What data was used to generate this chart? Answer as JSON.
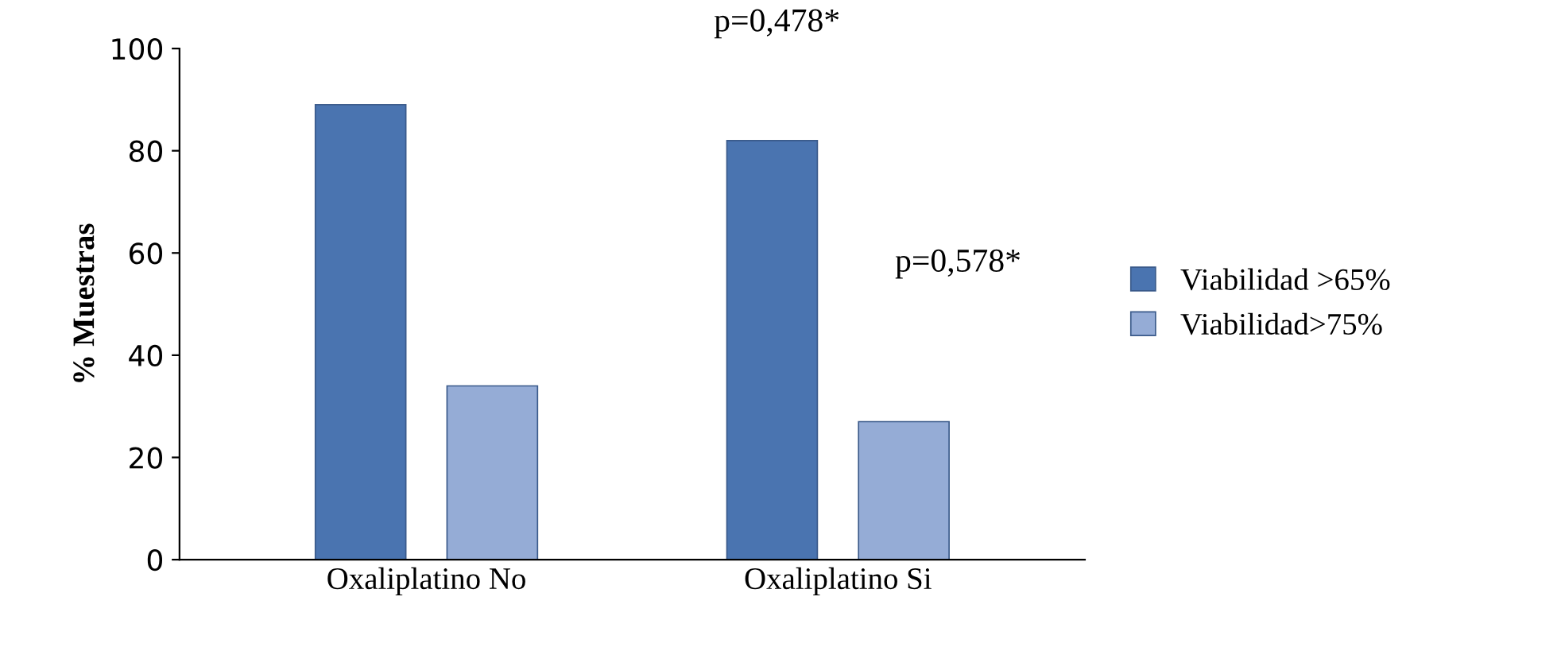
{
  "chart_data": {
    "type": "bar",
    "ylabel": "% Muestras",
    "categories": [
      "Oxaliplatino No",
      "Oxaliplatino Si"
    ],
    "series": [
      {
        "name": "Viabilidad >65%",
        "color": "#4a74b0",
        "values": [
          89,
          82
        ]
      },
      {
        "name": "Viabilidad>75%",
        "color": "#95acd6",
        "values": [
          34,
          27
        ]
      }
    ],
    "ylim": [
      0,
      100
    ],
    "yticks": [
      0,
      20,
      40,
      60,
      80,
      100
    ],
    "grid": false,
    "legend": "right",
    "annotations": [
      "p=0,478*",
      "p=0,578*"
    ]
  }
}
